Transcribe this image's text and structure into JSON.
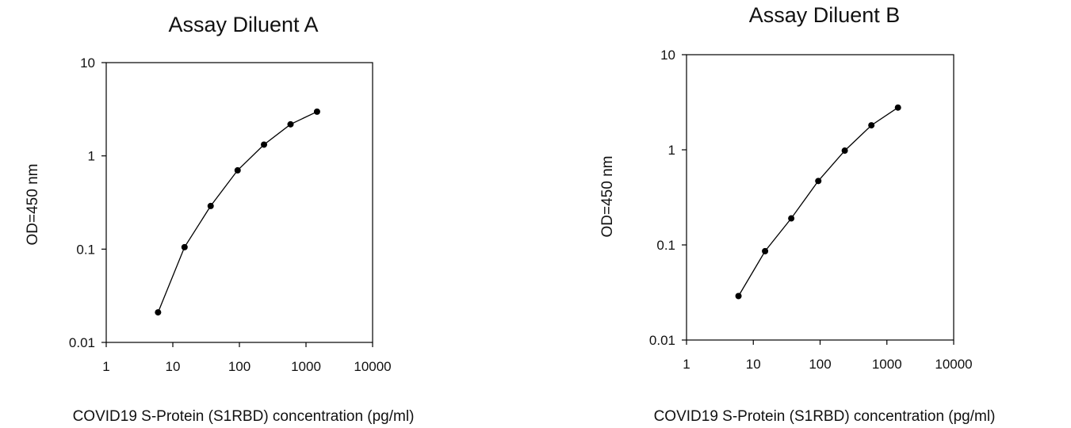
{
  "chart_data": [
    {
      "type": "line",
      "title": "Assay Diluent A",
      "xlabel": "COVID19 S-Protein (S1RBD) concentration (pg/ml)",
      "ylabel": "OD=450 nm",
      "x_scale": "log",
      "y_scale": "log",
      "xlim": [
        1,
        10000
      ],
      "ylim": [
        0.01,
        10
      ],
      "x_ticks": [
        "1",
        "10",
        "100",
        "1000",
        "10000"
      ],
      "y_ticks": [
        "10",
        "1",
        "0.1",
        "0.01"
      ],
      "grid": false,
      "legend": "none",
      "series": [
        {
          "x": [
            6,
            15,
            37,
            94,
            234,
            586,
            1465
          ],
          "y": [
            0.021,
            0.105,
            0.29,
            0.7,
            1.32,
            2.18,
            2.98
          ]
        }
      ]
    },
    {
      "type": "line",
      "title": "Assay Diluent B",
      "xlabel": "COVID19 S-Protein (S1RBD) concentration (pg/ml)",
      "ylabel": "OD=450 nm",
      "x_scale": "log",
      "y_scale": "log",
      "xlim": [
        1,
        10000
      ],
      "ylim": [
        0.01,
        10
      ],
      "x_ticks": [
        "1",
        "10",
        "100",
        "1000",
        "10000"
      ],
      "y_ticks": [
        "10",
        "1",
        "0.1",
        "0.01"
      ],
      "grid": false,
      "legend": "none",
      "series": [
        {
          "x": [
            6,
            15,
            37,
            94,
            234,
            586,
            1465
          ],
          "y": [
            0.029,
            0.086,
            0.19,
            0.47,
            0.98,
            1.81,
            2.78
          ]
        }
      ]
    }
  ],
  "style": {
    "line_color": "#000000",
    "marker_color": "#000000",
    "background": "#ffffff"
  }
}
